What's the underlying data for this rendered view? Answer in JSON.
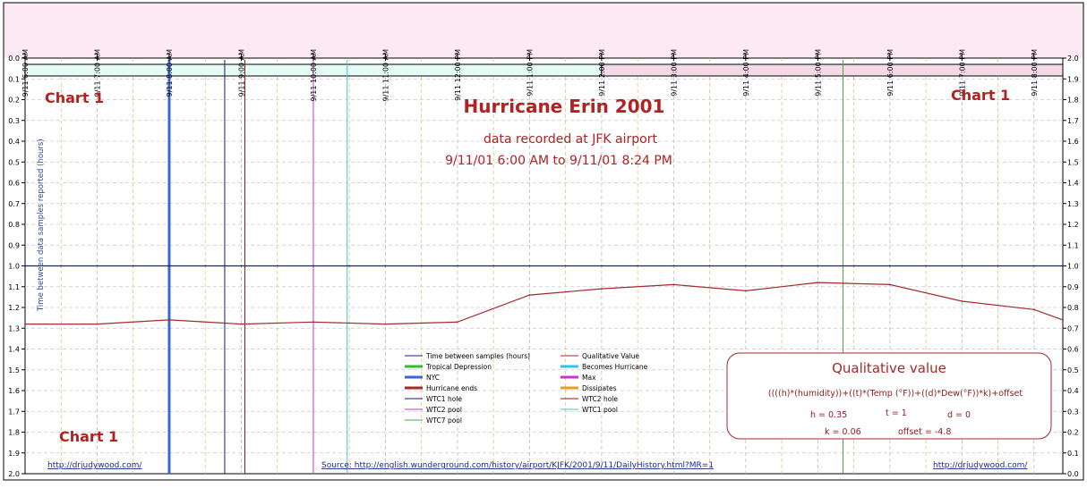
{
  "chart_data": {
    "type": "line",
    "title": "Hurricane Erin 2001",
    "subtitle": "data recorded at JFK airport",
    "date_range": "9/11/01 6:00 AM to 9/11/01 8:24 PM",
    "chart_labels": [
      "Chart 1",
      "Chart 1",
      "Chart 1"
    ],
    "ylabel_left": "Time between data samples reported (hours)",
    "left_axis": {
      "min": 0.0,
      "max": 2.0,
      "inverted": true,
      "ticks": [
        "0.0",
        "0.1",
        "0.2",
        "0.3",
        "0.4",
        "0.5",
        "0.6",
        "0.7",
        "0.8",
        "0.9",
        "1.0",
        "1.1",
        "1.2",
        "1.3",
        "1.4",
        "1.5",
        "1.6",
        "1.7",
        "1.8",
        "1.9",
        "2.0"
      ]
    },
    "right_axis": {
      "min": 0.0,
      "max": 2.0,
      "ticks": [
        "2.0",
        "1.9",
        "1.8",
        "1.7",
        "1.6",
        "1.5",
        "1.4",
        "1.3",
        "1.2",
        "1.1",
        "1.0",
        "0.9",
        "0.8",
        "0.7",
        "0.6",
        "0.5",
        "0.4",
        "0.3",
        "0.2",
        "0.1",
        "0.0"
      ]
    },
    "x_axis": {
      "start_hour": 6.0,
      "end_hour": 20.4,
      "ticks": [
        {
          "hour": 6.0,
          "label": "9/11 6:00 AM"
        },
        {
          "hour": 7.0,
          "label": "9/11 7:00 AM"
        },
        {
          "hour": 8.0,
          "label": "9/11 8:00 AM"
        },
        {
          "hour": 9.0,
          "label": "9/11 9:00 AM"
        },
        {
          "hour": 10.0,
          "label": "9/11 10:00 AM"
        },
        {
          "hour": 11.0,
          "label": "9/11 11:00 AM"
        },
        {
          "hour": 12.0,
          "label": "9/11 12:00 PM"
        },
        {
          "hour": 13.0,
          "label": "9/11 1:00 PM"
        },
        {
          "hour": 14.0,
          "label": "9/11 2:00 PM"
        },
        {
          "hour": 15.0,
          "label": "9/11 3:00 PM"
        },
        {
          "hour": 16.0,
          "label": "9/11 4:00 PM"
        },
        {
          "hour": 17.0,
          "label": "9/11 5:00 PM"
        },
        {
          "hour": 18.0,
          "label": "9/11 6:00 PM"
        },
        {
          "hour": 19.0,
          "label": "9/11 7:00 PM"
        },
        {
          "hour": 20.0,
          "label": "9/11 8:00 PM"
        }
      ]
    },
    "status_bar": [
      {
        "from_hour": 6.0,
        "to_hour": 14.0,
        "color": "#e6fbf6"
      },
      {
        "from_hour": 14.0,
        "to_hour": 20.4,
        "color": "#f5d9e6"
      }
    ],
    "series": [
      {
        "name": "Time between samples (hours)",
        "axis": "left",
        "color": "#1c1c8c",
        "x": [
          6.0,
          6.5,
          7.0,
          7.5,
          8.0,
          8.5,
          9.0,
          9.5,
          10.0,
          10.5,
          11.0,
          11.5,
          12.0,
          12.5,
          13.0,
          13.5,
          14.0,
          14.5,
          15.0,
          15.5,
          16.0,
          16.5,
          17.0,
          17.5,
          18.0,
          18.5,
          19.0,
          19.5,
          20.0,
          20.4
        ],
        "y": [
          1.0,
          1.0,
          1.0,
          1.0,
          1.0,
          1.0,
          1.0,
          1.0,
          1.0,
          1.0,
          1.0,
          1.0,
          1.0,
          1.0,
          1.0,
          1.0,
          1.0,
          1.0,
          1.0,
          1.0,
          1.0,
          1.0,
          1.0,
          1.0,
          1.0,
          1.0,
          1.0,
          1.0,
          1.0,
          1.0
        ]
      },
      {
        "name": "Qualitative Value",
        "axis": "right",
        "color": "#a52a2a",
        "x": [
          6.0,
          7.0,
          8.0,
          9.0,
          10.0,
          11.0,
          12.0,
          13.0,
          14.0,
          15.0,
          16.0,
          17.0,
          18.0,
          19.0,
          20.0,
          20.4
        ],
        "y": [
          0.72,
          0.72,
          0.74,
          0.72,
          0.73,
          0.72,
          0.73,
          0.86,
          0.89,
          0.91,
          0.88,
          0.92,
          0.91,
          0.83,
          0.79,
          0.74
        ]
      }
    ],
    "events": [
      {
        "name": "NYC",
        "hour": 8.0,
        "color": "#3a66d6",
        "width": 3
      },
      {
        "name": "WTC1 hole",
        "hour": 8.77,
        "color": "#1a1a6e",
        "width": 1
      },
      {
        "name": "WTC2 hole",
        "hour": 9.05,
        "color": "#8b1a1a",
        "width": 1
      },
      {
        "name": "WTC2 pool",
        "hour": 10.0,
        "color": "#cc33cc",
        "width": 1
      },
      {
        "name": "WTC1 pool",
        "hour": 10.47,
        "color": "#3cc8c8",
        "width": 1
      },
      {
        "name": "WTC7 pool",
        "hour": 17.35,
        "color": "#44aa44",
        "width": 1
      }
    ],
    "legend": [
      {
        "label": "Time between samples (hours)",
        "color": "#1c1c8c",
        "thick": false
      },
      {
        "label": "Qualitative Value",
        "color": "#a52a2a",
        "thick": false
      },
      {
        "label": "Tropical Depression",
        "color": "#33bb33",
        "thick": true
      },
      {
        "label": "Becomes Hurricane",
        "color": "#33c3e6",
        "thick": true
      },
      {
        "label": "NYC",
        "color": "#3a66d6",
        "thick": true
      },
      {
        "label": "Max",
        "color": "#cc33cc",
        "thick": true
      },
      {
        "label": "Hurricane ends",
        "color": "#a52a2a",
        "thick": true
      },
      {
        "label": "Dissipates",
        "color": "#e0a020",
        "thick": true
      },
      {
        "label": "WTC1 hole",
        "color": "#1a1a6e",
        "thick": false
      },
      {
        "label": "WTC2 hole",
        "color": "#8b1a1a",
        "thick": false
      },
      {
        "label": "WTC2 pool",
        "color": "#cc33cc",
        "thick": false
      },
      {
        "label": "WTC1 pool",
        "color": "#3cc8c8",
        "thick": false
      },
      {
        "label": "WTC7 pool",
        "color": "#44aa44",
        "thick": false
      }
    ],
    "qualitative_box": {
      "title": "Qualitative value",
      "formula": "((((h)*(humidity))+((t)*(Temp (°F))+((d)*Dew(°F))*k)+offset",
      "h": "h = 0.35",
      "t": "t = 1",
      "d": "d = 0",
      "k": "k = 0.06",
      "offset": "offset = -4.8"
    },
    "links": {
      "left": "http://drjudywood.com/",
      "source": "Source: http://english.wunderground.com/history/airport/KJFK/2001/9/11/DailyHistory.html?MR=1",
      "right": "http://drjudywood.com/"
    },
    "grid": true,
    "colors": {
      "header_bg": "#fce9f3",
      "grid": "#c8c8d8",
      "hour_line": "#e8c070"
    }
  }
}
